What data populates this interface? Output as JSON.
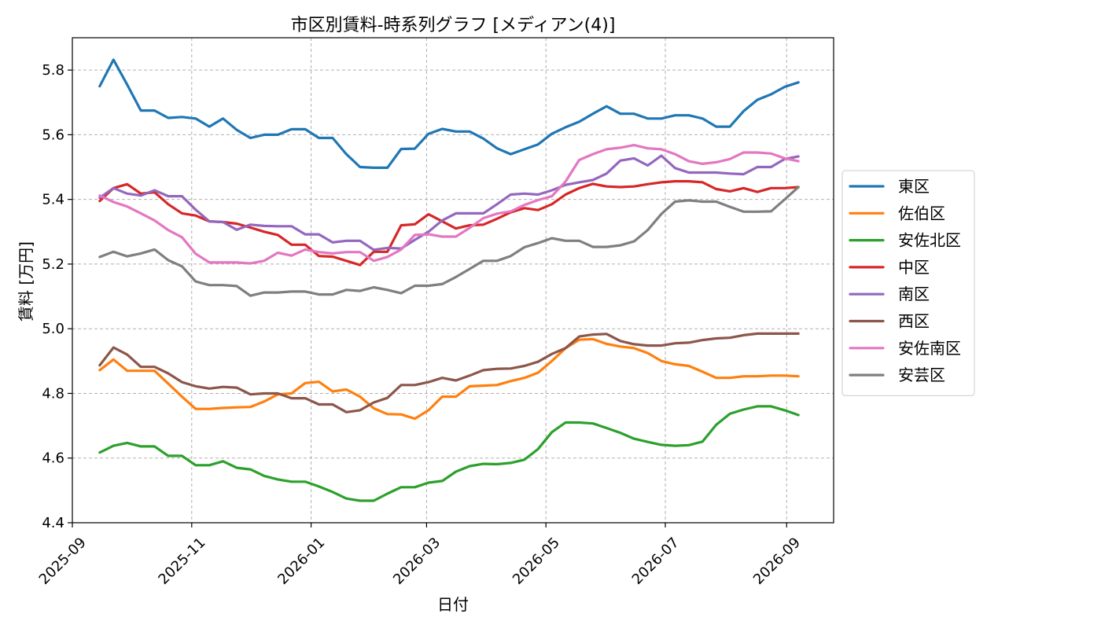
{
  "chart_data": {
    "type": "line",
    "title": "市区別賃料-時系列グラフ [メディアン(4)]",
    "xlabel": "日付",
    "ylabel": "賃料 [万円]",
    "x_axis_type": "date",
    "xlim": [
      "2025-09-01",
      "2026-09-25"
    ],
    "ylim": [
      4.4,
      5.9
    ],
    "x_ticks": [
      "2025-09",
      "2025-11",
      "2026-01",
      "2026-03",
      "2026-05",
      "2026-07",
      "2026-09"
    ],
    "y_ticks": [
      4.4,
      4.6,
      4.8,
      5.0,
      5.2,
      5.4,
      5.6,
      5.8
    ],
    "y_tick_labels": [
      "4.4",
      "4.6",
      "4.8",
      "5.0",
      "5.2",
      "5.4",
      "5.6",
      "5.8"
    ],
    "grid": true,
    "legend_position": "right, outside plot",
    "x": [
      "2025-09-15",
      "2025-09-22",
      "2025-09-29",
      "2025-10-06",
      "2025-10-13",
      "2025-10-20",
      "2025-10-27",
      "2025-11-03",
      "2025-11-10",
      "2025-11-17",
      "2025-11-24",
      "2025-12-01",
      "2025-12-08",
      "2025-12-15",
      "2025-12-22",
      "2025-12-29",
      "2026-01-05",
      "2026-01-12",
      "2026-01-19",
      "2026-01-26",
      "2026-02-02",
      "2026-02-09",
      "2026-02-16",
      "2026-02-23",
      "2026-03-02",
      "2026-03-09",
      "2026-03-16",
      "2026-03-23",
      "2026-03-30",
      "2026-04-06",
      "2026-04-13",
      "2026-04-20",
      "2026-04-27",
      "2026-05-04",
      "2026-05-11",
      "2026-05-18",
      "2026-05-25",
      "2026-06-01",
      "2026-06-08",
      "2026-06-15",
      "2026-06-22",
      "2026-06-29",
      "2026-07-06",
      "2026-07-13",
      "2026-07-20",
      "2026-07-27",
      "2026-08-03",
      "2026-08-10",
      "2026-08-17",
      "2026-08-24",
      "2026-08-31",
      "2026-09-07"
    ],
    "series": [
      {
        "name": "東区",
        "color": "#1f77b4",
        "values": [
          5.75,
          5.832,
          5.755,
          5.675,
          5.675,
          5.652,
          5.655,
          5.65,
          5.625,
          5.65,
          5.615,
          5.59,
          5.6,
          5.6,
          5.617,
          5.617,
          5.59,
          5.59,
          5.54,
          5.5,
          5.498,
          5.498,
          5.556,
          5.557,
          5.603,
          5.618,
          5.61,
          5.61,
          5.588,
          5.558,
          5.54,
          5.555,
          5.57,
          5.603,
          5.623,
          5.64,
          5.665,
          5.688,
          5.665,
          5.665,
          5.65,
          5.65,
          5.66,
          5.66,
          5.65,
          5.625,
          5.625,
          5.673,
          5.708,
          5.725,
          5.748,
          5.762
        ]
      },
      {
        "name": "佐伯区",
        "color": "#ff7f0e",
        "values": [
          4.872,
          4.905,
          4.87,
          4.87,
          4.87,
          4.83,
          4.79,
          4.752,
          4.752,
          4.755,
          4.757,
          4.758,
          4.775,
          4.797,
          4.8,
          4.832,
          4.836,
          4.806,
          4.812,
          4.79,
          4.754,
          4.736,
          4.735,
          4.722,
          4.748,
          4.79,
          4.79,
          4.822,
          4.824,
          4.826,
          4.838,
          4.848,
          4.864,
          4.9,
          4.94,
          4.966,
          4.968,
          4.953,
          4.945,
          4.94,
          4.925,
          4.9,
          4.89,
          4.885,
          4.867,
          4.848,
          4.848,
          4.853,
          4.853,
          4.855,
          4.855,
          4.853
        ]
      },
      {
        "name": "安佐北区",
        "color": "#2ca02c",
        "values": [
          4.617,
          4.638,
          4.647,
          4.636,
          4.636,
          4.607,
          4.607,
          4.578,
          4.578,
          4.59,
          4.57,
          4.565,
          4.545,
          4.534,
          4.527,
          4.527,
          4.512,
          4.495,
          4.475,
          4.468,
          4.468,
          4.49,
          4.51,
          4.51,
          4.524,
          4.529,
          4.558,
          4.575,
          4.582,
          4.581,
          4.585,
          4.595,
          4.628,
          4.68,
          4.71,
          4.71,
          4.707,
          4.693,
          4.678,
          4.66,
          4.65,
          4.641,
          4.638,
          4.64,
          4.651,
          4.703,
          4.737,
          4.75,
          4.76,
          4.76,
          4.748,
          4.733
        ]
      },
      {
        "name": "中区",
        "color": "#d62728",
        "values": [
          5.395,
          5.435,
          5.447,
          5.418,
          5.422,
          5.385,
          5.357,
          5.35,
          5.332,
          5.33,
          5.325,
          5.313,
          5.3,
          5.29,
          5.26,
          5.26,
          5.225,
          5.223,
          5.21,
          5.197,
          5.238,
          5.238,
          5.32,
          5.323,
          5.354,
          5.332,
          5.31,
          5.32,
          5.322,
          5.34,
          5.36,
          5.373,
          5.367,
          5.385,
          5.415,
          5.435,
          5.448,
          5.44,
          5.438,
          5.44,
          5.447,
          5.453,
          5.456,
          5.456,
          5.453,
          5.432,
          5.425,
          5.435,
          5.423,
          5.435,
          5.435,
          5.438
        ]
      },
      {
        "name": "南区",
        "color": "#9467bd",
        "values": [
          5.405,
          5.435,
          5.418,
          5.412,
          5.428,
          5.41,
          5.41,
          5.368,
          5.332,
          5.33,
          5.306,
          5.322,
          5.318,
          5.317,
          5.317,
          5.292,
          5.292,
          5.267,
          5.272,
          5.272,
          5.244,
          5.25,
          5.248,
          5.275,
          5.3,
          5.335,
          5.357,
          5.357,
          5.357,
          5.385,
          5.415,
          5.418,
          5.415,
          5.428,
          5.445,
          5.453,
          5.46,
          5.48,
          5.52,
          5.527,
          5.505,
          5.535,
          5.497,
          5.483,
          5.483,
          5.483,
          5.48,
          5.478,
          5.5,
          5.5,
          5.525,
          5.533
        ]
      },
      {
        "name": "西区",
        "color": "#8c564b",
        "values": [
          4.887,
          4.942,
          4.92,
          4.882,
          4.882,
          4.862,
          4.835,
          4.822,
          4.815,
          4.82,
          4.818,
          4.797,
          4.8,
          4.8,
          4.785,
          4.785,
          4.766,
          4.766,
          4.742,
          4.748,
          4.772,
          4.786,
          4.826,
          4.826,
          4.835,
          4.848,
          4.84,
          4.855,
          4.872,
          4.876,
          4.877,
          4.885,
          4.898,
          4.922,
          4.94,
          4.976,
          4.982,
          4.984,
          4.962,
          4.952,
          4.948,
          4.948,
          4.955,
          4.957,
          4.965,
          4.97,
          4.972,
          4.98,
          4.985,
          4.985,
          4.985,
          4.985
        ]
      },
      {
        "name": "安佐南区",
        "color": "#e377c2",
        "values": [
          5.412,
          5.392,
          5.378,
          5.357,
          5.335,
          5.305,
          5.283,
          5.232,
          5.205,
          5.205,
          5.205,
          5.202,
          5.21,
          5.235,
          5.226,
          5.245,
          5.237,
          5.233,
          5.237,
          5.237,
          5.21,
          5.222,
          5.245,
          5.29,
          5.292,
          5.285,
          5.285,
          5.312,
          5.342,
          5.356,
          5.363,
          5.383,
          5.398,
          5.41,
          5.455,
          5.522,
          5.54,
          5.555,
          5.56,
          5.568,
          5.558,
          5.555,
          5.54,
          5.518,
          5.51,
          5.515,
          5.525,
          5.545,
          5.545,
          5.542,
          5.527,
          5.518
        ]
      },
      {
        "name": "安芸区",
        "color": "#7f7f7f",
        "values": [
          5.222,
          5.238,
          5.224,
          5.233,
          5.245,
          5.212,
          5.193,
          5.146,
          5.135,
          5.135,
          5.132,
          5.102,
          5.112,
          5.112,
          5.115,
          5.115,
          5.106,
          5.106,
          5.12,
          5.117,
          5.128,
          5.12,
          5.11,
          5.133,
          5.133,
          5.138,
          5.16,
          5.185,
          5.21,
          5.21,
          5.225,
          5.252,
          5.265,
          5.28,
          5.272,
          5.272,
          5.253,
          5.253,
          5.258,
          5.27,
          5.305,
          5.355,
          5.393,
          5.397,
          5.393,
          5.393,
          5.377,
          5.362,
          5.362,
          5.363,
          5.4,
          5.438
        ]
      }
    ]
  }
}
